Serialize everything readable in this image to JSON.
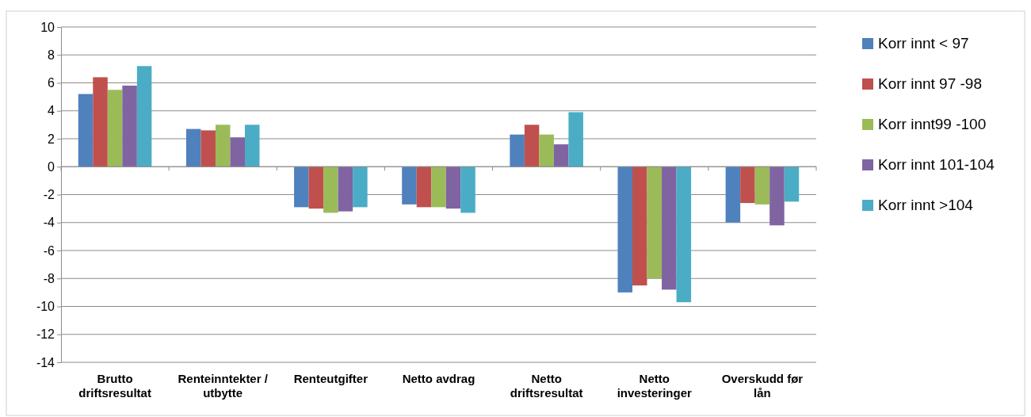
{
  "chart_data": {
    "type": "bar",
    "categories": [
      "Brutto driftsresultat",
      "Renteinntekter / utbytte",
      "Renteutgifter",
      "Netto avdrag",
      "Netto driftsresultat",
      "Netto investeringer",
      "Overskudd før lån"
    ],
    "series": [
      {
        "name": "Korr innt < 97",
        "color": "#4f81bd",
        "values": [
          5.2,
          2.7,
          -2.9,
          -2.7,
          2.3,
          -9.0,
          -4.0
        ]
      },
      {
        "name": "Korr innt 97 -98",
        "color": "#c0504d",
        "values": [
          6.4,
          2.6,
          -3.0,
          -2.9,
          3.0,
          -8.5,
          -2.6
        ]
      },
      {
        "name": "Korr innt99 -100",
        "color": "#9bbb59",
        "values": [
          5.5,
          3.0,
          -3.3,
          -2.9,
          2.3,
          -8.0,
          -2.7
        ]
      },
      {
        "name": "Korr innt 101-104",
        "color": "#8064a2",
        "values": [
          5.8,
          2.1,
          -3.2,
          -3.0,
          1.6,
          -8.8,
          -4.2
        ]
      },
      {
        "name": "Korr innt >104",
        "color": "#4bacc6",
        "values": [
          7.2,
          3.0,
          -2.9,
          -3.3,
          3.9,
          -9.7,
          -2.5
        ]
      }
    ],
    "ylim": [
      -14,
      10
    ],
    "yticks": [
      -14,
      -12,
      -10,
      -8,
      -6,
      -4,
      -2,
      0,
      2,
      4,
      6,
      8,
      10
    ],
    "grid": "y",
    "legend": "right"
  }
}
